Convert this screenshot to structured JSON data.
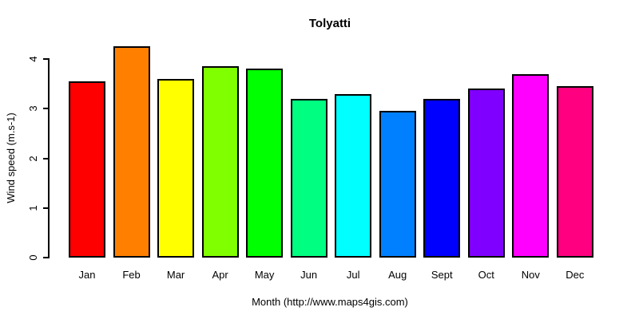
{
  "chart_data": {
    "type": "bar",
    "title": "Tolyatti",
    "categories": [
      "Jan",
      "Feb",
      "Mar",
      "Apr",
      "May",
      "Jun",
      "Jul",
      "Aug",
      "Sept",
      "Oct",
      "Nov",
      "Dec"
    ],
    "values": [
      3.55,
      4.25,
      3.6,
      3.85,
      3.8,
      3.2,
      3.3,
      2.95,
      3.2,
      3.4,
      3.7,
      3.45
    ],
    "bar_colors": [
      "#FF0000",
      "#FF8000",
      "#FFFF00",
      "#80FF00",
      "#00FF00",
      "#00FF80",
      "#00FFFF",
      "#0080FF",
      "#0000FF",
      "#8000FF",
      "#FF00FF",
      "#FF0080"
    ],
    "xlabel": "Month (http://www.maps4gis.com)",
    "ylabel": "Wind speed (m.s-1)",
    "ylim": [
      0,
      4
    ],
    "yticks": [
      "0",
      "1",
      "2",
      "3",
      "4"
    ],
    "grid": false,
    "legend": false,
    "bar_border_color": "#000000",
    "background_color": "#FFFFFF",
    "text_color": "#000000"
  }
}
